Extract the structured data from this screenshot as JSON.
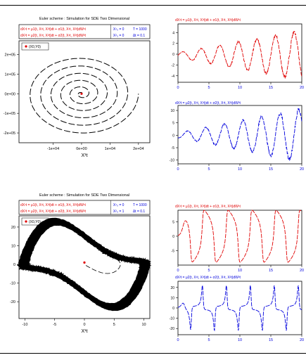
{
  "chart_data": [
    {
      "type": "line",
      "title": "Euler scheme : Simulation for SDE Two Dimensional",
      "equations": [
        "dX¹t = μ1(t, X¹t, X²t)dt + σ1(t, X¹t, X²t)dW¹t",
        "dX²t = μ2(t, X¹t, X²t)dt + σ2(t, X¹t, X²t)dW²t"
      ],
      "params": [
        "X¹₀ = 0",
        "X²₀ = 0",
        "T = 1000",
        "Δt = 0.1"
      ],
      "legend": "(X0,Y0)",
      "xlabel": "X¹t",
      "ylabel": "X²t",
      "xticks": [
        "-1e+04",
        "0e+00",
        "1e+04",
        "2e+04"
      ],
      "yticks": [
        "2e+05",
        "1e+05",
        "0e+00",
        "-1e+05",
        "-2e+05"
      ],
      "xlim": [
        -22000,
        24000
      ],
      "ylim": [
        -250000,
        270000
      ],
      "series": [
        {
          "type": "spiral",
          "a_max": 20000,
          "b_max": 210000,
          "turns": 6
        }
      ]
    },
    {
      "type": "line",
      "title": "dX¹t = μ1(t, X¹t, X²t)dt + σ1(t, X¹t, X²t)dW¹t",
      "xticks": [
        "0",
        "5",
        "10",
        "15",
        "20"
      ],
      "xlim": [
        0,
        20
      ],
      "yticks": [
        "4",
        "2",
        "0",
        "-2",
        "-4"
      ],
      "ylim": [
        -5.2,
        5.6
      ],
      "series": [
        {
          "color": "#e00000",
          "amp_start": 0.5,
          "amp_end": 4.5,
          "period": 3,
          "offset": -0.2
        }
      ]
    },
    {
      "type": "line",
      "title": "dX²t = μ2(t, X¹t, X²t)dt + σ2(t, X¹t, X²t)dW²t",
      "xticks": [
        "0",
        "5",
        "10",
        "15",
        "20"
      ],
      "xlim": [
        0,
        20
      ],
      "yticks": [
        "10",
        "5",
        "0",
        "-5",
        "-10"
      ],
      "ylim": [
        -11.5,
        12
      ],
      "series": [
        {
          "color": "#0000dd",
          "amp_start": 1,
          "amp_end": 10.5,
          "period": 3,
          "offset": 0
        }
      ]
    },
    {
      "type": "line",
      "title": "Euler scheme : Simulation for SDE Two Dimensional",
      "equations": [
        "dX¹t = μ1(t, X¹t, X²t)dt + σ1(t, X¹t, X²t)dW¹t",
        "dX²t = μ2(t, X¹t, X²t)dt + σ2(t, X¹t, X²t)dW²t"
      ],
      "params": [
        "X¹₀ = 0",
        "X²₀ = 1",
        "T = 1000",
        "Δt = 0.1"
      ],
      "legend": "(X0,Y0)",
      "xlabel": "X¹t",
      "ylabel": "X²t",
      "xticks": [
        "-10",
        "-5",
        "0",
        "5",
        "10"
      ],
      "yticks": [
        "20",
        "10",
        "0",
        "-10",
        "-20"
      ],
      "xlim": [
        -11,
        11
      ],
      "ylim": [
        -29,
        26
      ],
      "series": [
        {
          "type": "limit-cycle"
        }
      ]
    },
    {
      "type": "line",
      "title": "dX¹t = μ1(t, X¹t, X²t)dt + σ1(t, X¹t, X²t)dW¹t",
      "xticks": [
        "0",
        "5",
        "10",
        "15",
        "20"
      ],
      "xlim": [
        0,
        20
      ],
      "yticks": [
        "5",
        "0",
        "-5"
      ],
      "ylim": [
        -10,
        9
      ],
      "series": [
        {
          "color": "#e00000",
          "amp": 9,
          "period": 3.1
        }
      ]
    },
    {
      "type": "line",
      "title": "dX²t = μ2(t, X¹t, X²t)dt + σ2(t, X¹t, X²t)dW²t",
      "xticks": [
        "0",
        "5",
        "10",
        "15",
        "20"
      ],
      "xlim": [
        0,
        20
      ],
      "yticks": [
        "20",
        "10",
        "0",
        "-10",
        "-20"
      ],
      "ylim": [
        -26,
        26
      ],
      "series": [
        {
          "color": "#0000dd",
          "amp": 22,
          "period": 3.1
        }
      ]
    }
  ]
}
